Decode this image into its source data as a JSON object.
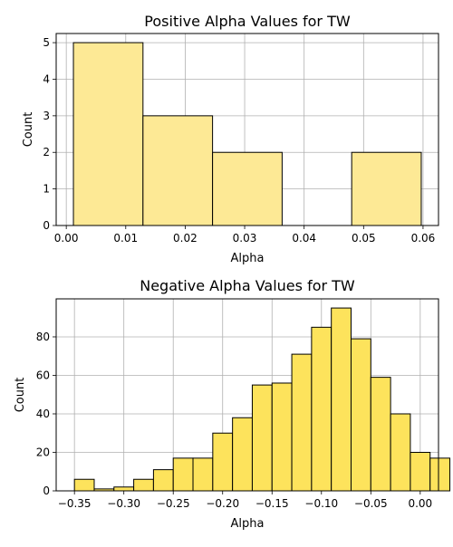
{
  "chart_data": [
    {
      "type": "bar",
      "title": "Positive Alpha Values for TW",
      "xlabel": "Alpha",
      "ylabel": "Count",
      "bins": [
        {
          "x0": 0.0012,
          "x1": 0.0129,
          "count": 5
        },
        {
          "x0": 0.0129,
          "x1": 0.0246,
          "count": 3
        },
        {
          "x0": 0.0246,
          "x1": 0.0363,
          "count": 2
        },
        {
          "x0": 0.0363,
          "x1": 0.048,
          "count": 0
        },
        {
          "x0": 0.048,
          "x1": 0.0597,
          "count": 2
        }
      ],
      "xlim": [
        -0.0017,
        0.0626
      ],
      "ylim": [
        0,
        5.25
      ],
      "xticks": [
        0.0,
        0.01,
        0.02,
        0.03,
        0.04,
        0.05,
        0.06
      ],
      "xtick_labels": [
        "0.00",
        "0.01",
        "0.02",
        "0.03",
        "0.04",
        "0.05",
        "0.06"
      ],
      "yticks": [
        0,
        1,
        2,
        3,
        4,
        5
      ],
      "ytick_labels": [
        "0",
        "1",
        "2",
        "3",
        "4",
        "5"
      ],
      "grid": true,
      "colors": {
        "fill": "#fde995",
        "edge": "#000000",
        "grid": "#b0b0b0"
      }
    },
    {
      "type": "bar",
      "title": "Negative Alpha Values for TW",
      "xlabel": "Alpha",
      "ylabel": "Count",
      "bins": [
        {
          "x0": -0.35,
          "x1": -0.33,
          "count": 6
        },
        {
          "x0": -0.33,
          "x1": -0.31,
          "count": 1
        },
        {
          "x0": -0.31,
          "x1": -0.29,
          "count": 2
        },
        {
          "x0": -0.29,
          "x1": -0.27,
          "count": 6
        },
        {
          "x0": -0.27,
          "x1": -0.25,
          "count": 11
        },
        {
          "x0": -0.25,
          "x1": -0.23,
          "count": 17
        },
        {
          "x0": -0.23,
          "x1": -0.21,
          "count": 17
        },
        {
          "x0": -0.21,
          "x1": -0.19,
          "count": 30
        },
        {
          "x0": -0.19,
          "x1": -0.17,
          "count": 38
        },
        {
          "x0": -0.17,
          "x1": -0.15,
          "count": 55
        },
        {
          "x0": -0.15,
          "x1": -0.13,
          "count": 56
        },
        {
          "x0": -0.13,
          "x1": -0.11,
          "count": 71
        },
        {
          "x0": -0.11,
          "x1": -0.09,
          "count": 85
        },
        {
          "x0": -0.09,
          "x1": -0.07,
          "count": 95
        },
        {
          "x0": -0.07,
          "x1": -0.05,
          "count": 79
        },
        {
          "x0": -0.05,
          "x1": -0.03,
          "count": 59
        },
        {
          "x0": -0.03,
          "x1": -0.01,
          "count": 40
        },
        {
          "x0": -0.01,
          "x1": 0.01,
          "count": 20
        },
        {
          "x0": 0.01,
          "x1": 0.03,
          "count": 17
        }
      ],
      "xlim": [
        -0.3685,
        0.0185
      ],
      "ylim": [
        0,
        99.75
      ],
      "xticks": [
        -0.35,
        -0.3,
        -0.25,
        -0.2,
        -0.15,
        -0.1,
        -0.05,
        0.0
      ],
      "xtick_labels": [
        "−0.35",
        "−0.30",
        "−0.25",
        "−0.20",
        "−0.15",
        "−0.10",
        "−0.05",
        "0.00"
      ],
      "yticks": [
        0,
        20,
        40,
        60,
        80
      ],
      "ytick_labels": [
        "0",
        "20",
        "40",
        "60",
        "80"
      ],
      "grid": true,
      "colors": {
        "fill": "#fde35c",
        "edge": "#000000",
        "grid": "#b0b0b0"
      }
    }
  ]
}
